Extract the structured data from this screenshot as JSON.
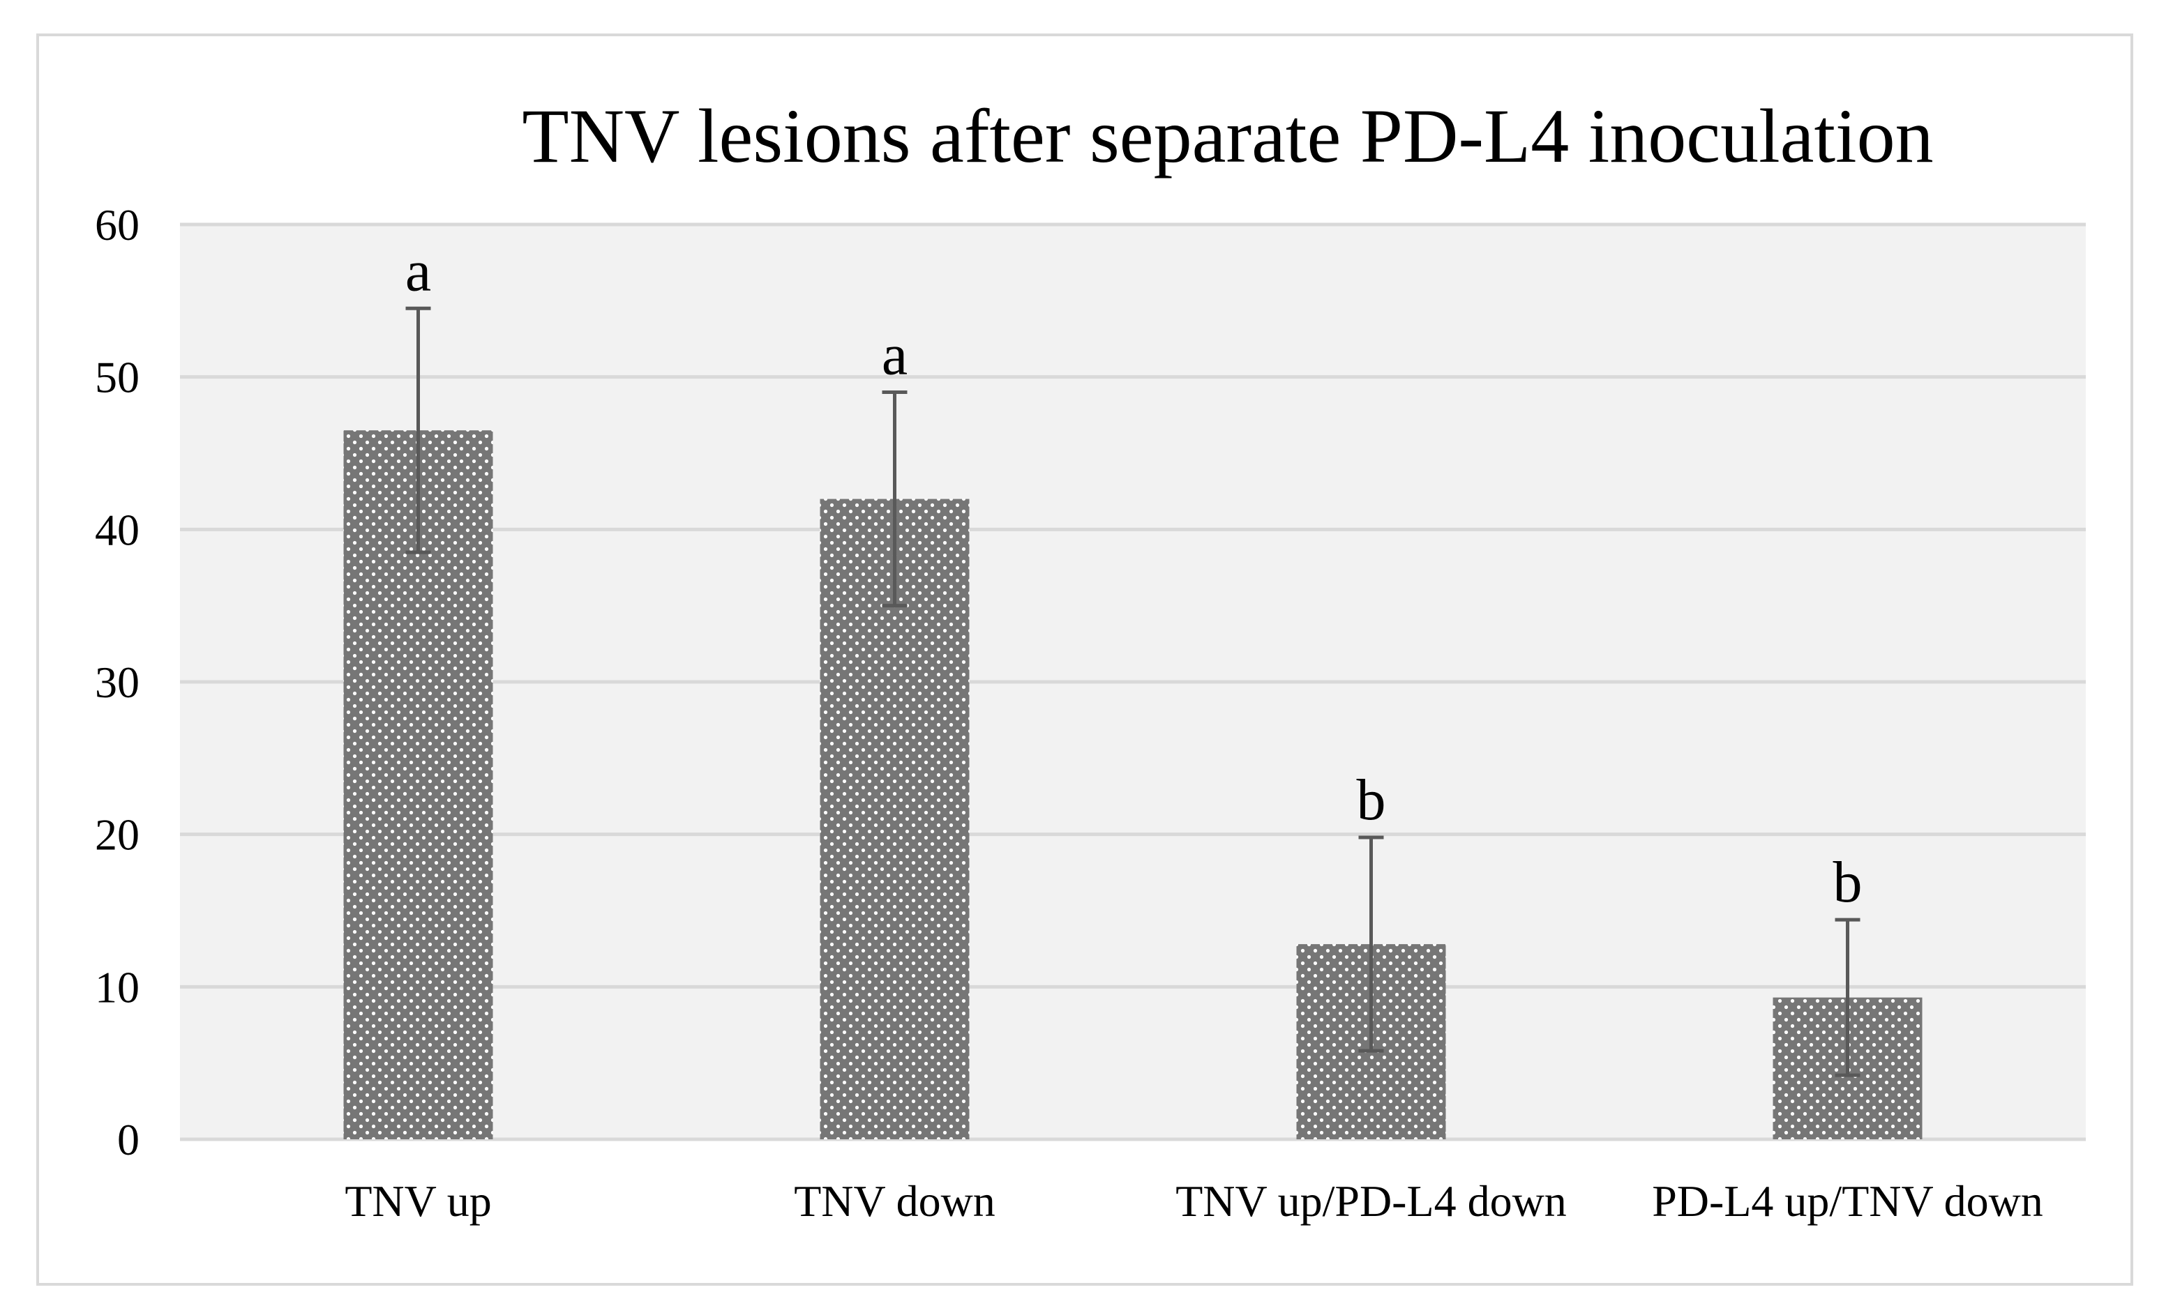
{
  "chart_data": {
    "type": "bar",
    "title": "TNV lesions after separate PD-L4 inoculation",
    "xlabel": "",
    "ylabel": "",
    "ylim": [
      0,
      60
    ],
    "yticks": [
      0,
      10,
      20,
      30,
      40,
      50,
      60
    ],
    "grid": true,
    "categories": [
      "TNV up",
      "TNV down",
      "TNV up/PD-L4 down",
      "PD-L4 up/TNV down"
    ],
    "values": [
      46.5,
      42.0,
      12.8,
      9.3
    ],
    "error": [
      8.0,
      7.0,
      7.0,
      5.1
    ],
    "significance_labels": [
      "a",
      "a",
      "b",
      "b"
    ]
  },
  "colors": {
    "plot_background": "#f2f2f2",
    "gridline": "#d9d9d9",
    "bar_fill": "#767676",
    "bar_dot": "#ffffff",
    "error_bar": "#595959",
    "text": "#000000",
    "frame_border": "#d9d9d9"
  }
}
